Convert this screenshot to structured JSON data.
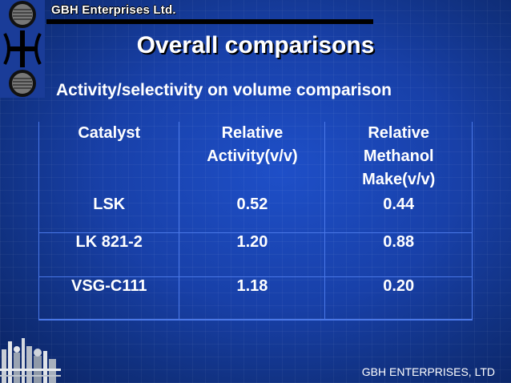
{
  "header": {
    "company": "GBH Enterprises Ltd.",
    "logo_icon": "gbh-symbol-icon"
  },
  "slide": {
    "title": "Overall comparisons",
    "subtitle": "Activity/selectivity on volume comparison"
  },
  "table": {
    "columns": [
      "Catalyst",
      "Relative Activity(v/v)",
      "Relative Methanol Make(v/v)"
    ],
    "column_lines": [
      [
        "Catalyst"
      ],
      [
        "Relative",
        "Activity(v/v)"
      ],
      [
        "Relative",
        "Methanol",
        "Make(v/v)"
      ]
    ],
    "rows": [
      [
        "LSK",
        "0.52",
        "0.44"
      ],
      [
        "LK 821-2",
        "1.20",
        "0.88"
      ],
      [
        "VSG-C111",
        "1.18",
        "0.20"
      ]
    ]
  },
  "footer": {
    "text": "GBH ENTERPRISES, LTD",
    "plant_icon": "industrial-plant-icon"
  },
  "colors": {
    "background": "#1840a8",
    "text": "#ffffff",
    "grid": "#4a78e8",
    "accent_line": "#000000"
  }
}
